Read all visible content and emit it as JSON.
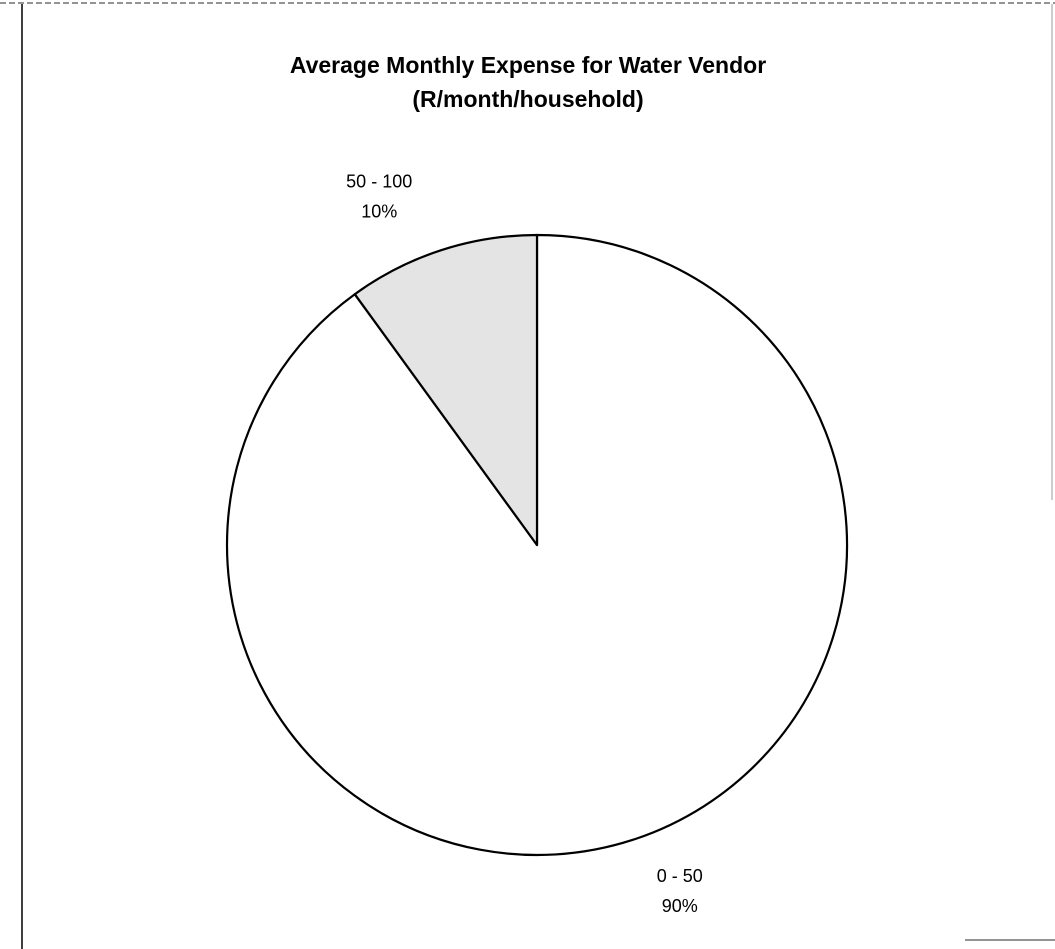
{
  "chart_data": {
    "type": "pie",
    "title": [
      "Average Monthly Expense for Water Vendor",
      "(R/month/household)"
    ],
    "categories": [
      "0 - 50",
      "50 - 100"
    ],
    "values": [
      90,
      10
    ],
    "value_labels": [
      "90%",
      "10%"
    ],
    "colors": [
      "#ffffff",
      "#e4e4e4"
    ]
  }
}
